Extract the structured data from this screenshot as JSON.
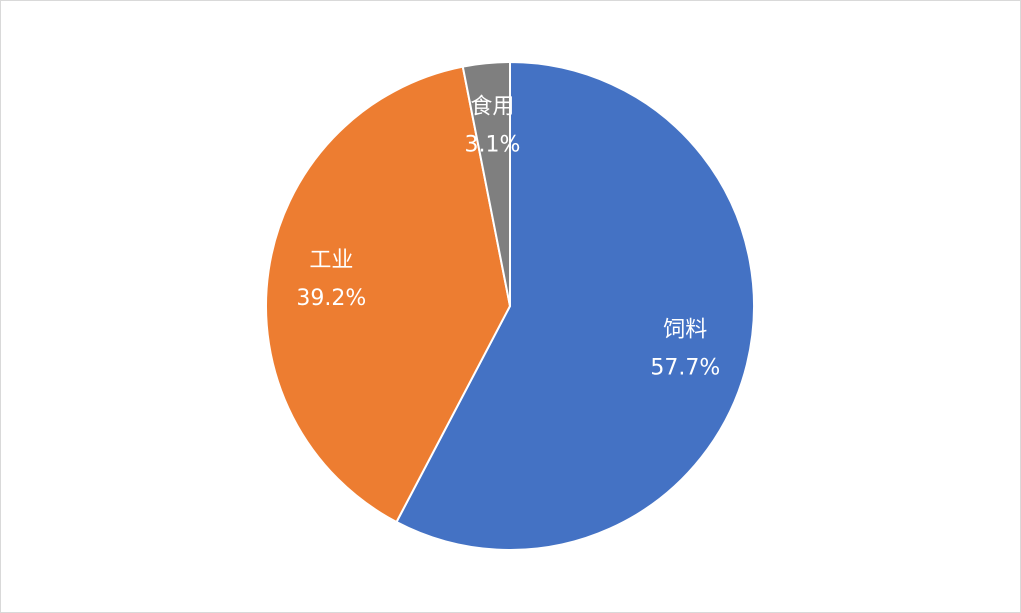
{
  "chart_data": {
    "type": "pie",
    "categories": [
      "饲料",
      "工业",
      "食用"
    ],
    "values": [
      57.7,
      39.2,
      3.1
    ],
    "value_labels": [
      "57.7%",
      "39.2%",
      "3.1%"
    ],
    "colors": [
      "#4472c4",
      "#ed7d31",
      "#7f7f7f"
    ]
  }
}
